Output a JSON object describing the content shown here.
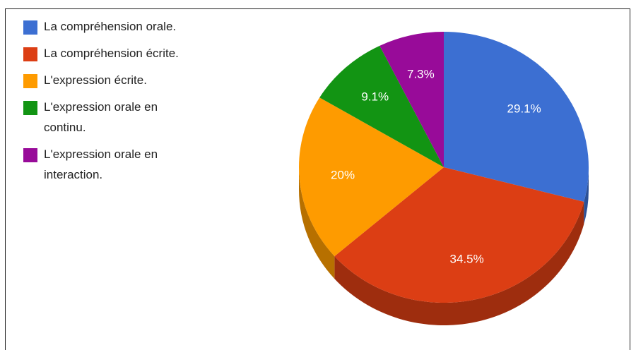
{
  "chart_data": {
    "type": "pie",
    "categories": [
      "La compréhension orale.",
      "La compréhension écrite.",
      "L'expression écrite.",
      "L'expression orale en continu.",
      "L'expression orale en interaction."
    ],
    "values": [
      29.1,
      34.5,
      20,
      9.1,
      7.3
    ],
    "value_labels": [
      "29.1%",
      "34.5%",
      "20%",
      "9.1%",
      "7.3%"
    ],
    "colors": [
      "#3c6fd2",
      "#dc3e14",
      "#fe9b00",
      "#129413",
      "#980b99"
    ],
    "legend": "left"
  }
}
